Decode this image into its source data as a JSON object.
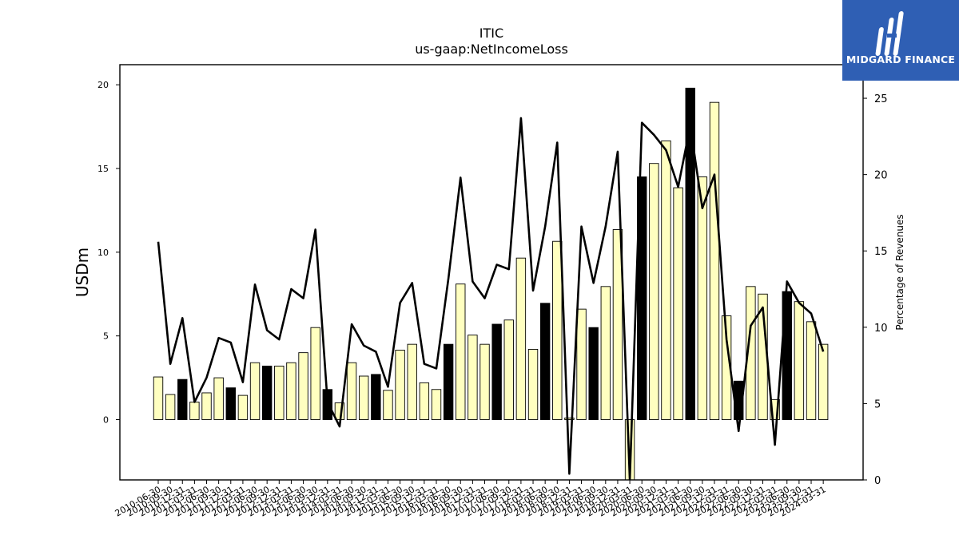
{
  "chart_data": {
    "type": "bar",
    "title": "ITIC",
    "subtitle": "us-gaap:NetIncomeLoss",
    "ylabel": "USDm",
    "y2label": "Percentage of Revenues",
    "ylim": [
      -3.6,
      21.2
    ],
    "y2lim": [
      0,
      27.2
    ],
    "yticks": [
      0,
      5,
      10,
      15,
      20
    ],
    "y2ticks": [
      0,
      5,
      10,
      15,
      20,
      25
    ],
    "grid": false,
    "categories": [
      "2010-06-30",
      "2010-09-30",
      "2010-12-31",
      "2011-03-31",
      "2011-06-30",
      "2011-09-30",
      "2011-12-31",
      "2012-03-31",
      "2012-06-30",
      "2012-09-30",
      "2012-12-31",
      "2013-03-31",
      "2013-06-30",
      "2013-09-30",
      "2013-12-31",
      "2014-03-31",
      "2014-06-30",
      "2014-09-30",
      "2014-12-31",
      "2015-03-31",
      "2015-06-30",
      "2015-09-30",
      "2015-12-31",
      "2016-03-31",
      "2016-06-30",
      "2016-09-30",
      "2016-12-31",
      "2017-03-31",
      "2017-06-30",
      "2017-09-30",
      "2017-12-31",
      "2018-03-31",
      "2018-06-30",
      "2018-09-30",
      "2018-12-31",
      "2019-03-31",
      "2019-06-30",
      "2019-09-30",
      "2019-12-31",
      "2020-03-31",
      "2020-06-30",
      "2020-09-30",
      "2020-12-31",
      "2021-03-31",
      "2021-06-30",
      "2021-09-30",
      "2021-12-31",
      "2022-03-31",
      "2022-06-30",
      "2022-09-30",
      "2022-12-31",
      "2023-03-31",
      "2023-06-30",
      "2023-09-30",
      "2023-12-31",
      "2024-03-31"
    ],
    "series": [
      {
        "kind": "bar",
        "values": [
          2.55,
          1.5,
          2.4,
          1.05,
          1.6,
          2.5,
          1.9,
          1.45,
          3.4,
          3.2,
          3.2,
          3.4,
          4.0,
          5.5,
          1.8,
          1.0,
          3.4,
          2.6,
          2.7,
          1.75,
          4.15,
          4.5,
          2.2,
          1.8,
          4.5,
          8.1,
          5.05,
          4.5,
          5.7,
          5.95,
          9.65,
          4.2,
          6.95,
          10.65,
          0.1,
          6.6,
          5.5,
          7.95,
          11.35,
          -3.6,
          14.5,
          15.3,
          16.65,
          13.85,
          19.8,
          14.5,
          18.95,
          6.2,
          2.3,
          7.95,
          7.5,
          1.2,
          7.65,
          7.05,
          5.85,
          4.5
        ],
        "highlight_indices": [
          2,
          6,
          9,
          14,
          18,
          24,
          28,
          32,
          36,
          40,
          44,
          48,
          52
        ],
        "highlight_color": "#000000",
        "color": "#ffffc0"
      },
      {
        "kind": "line",
        "axis": "right",
        "values": [
          15.6,
          7.6,
          10.6,
          5.1,
          6.7,
          9.3,
          9.0,
          6.4,
          12.8,
          9.8,
          9.2,
          12.5,
          11.9,
          16.4,
          5.1,
          3.5,
          10.2,
          8.8,
          8.4,
          6.1,
          11.6,
          12.9,
          7.6,
          7.3,
          13.2,
          19.8,
          13.0,
          11.9,
          14.1,
          13.8,
          23.7,
          12.4,
          16.6,
          22.1,
          0.4,
          16.6,
          12.9,
          16.6,
          21.5,
          0.0,
          23.4,
          22.6,
          21.6,
          19.2,
          23.2,
          17.8,
          20.0,
          9.2,
          3.2,
          10.1,
          11.3,
          2.3,
          13.0,
          11.6,
          10.9,
          8.4
        ],
        "color": "#000000"
      }
    ]
  },
  "logo": {
    "text": "MIDGARD FINANCE"
  }
}
